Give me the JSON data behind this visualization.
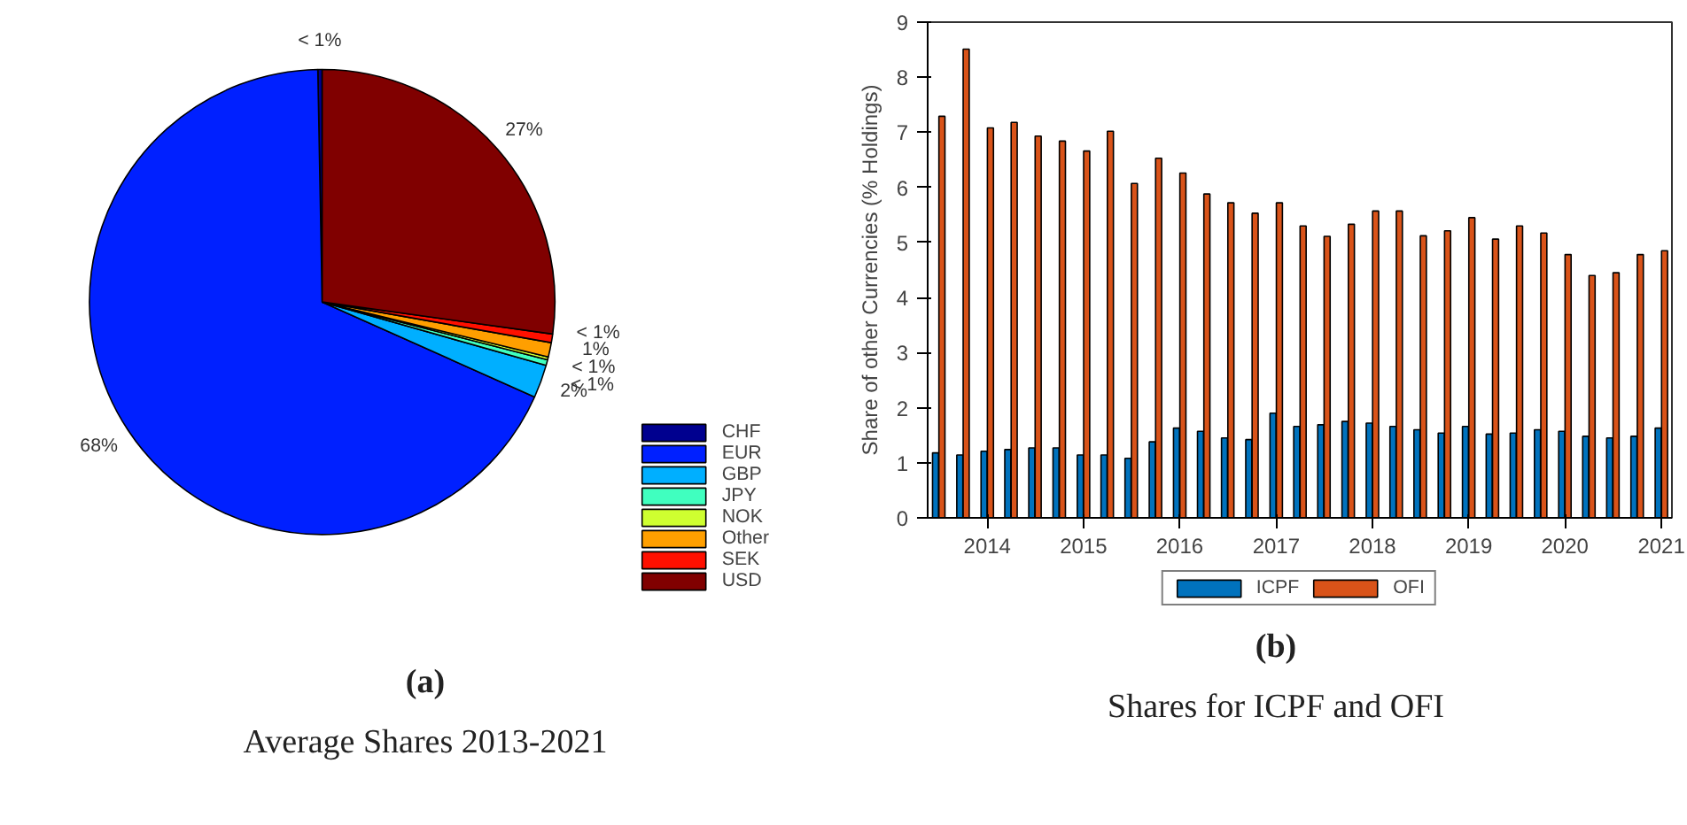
{
  "chart_data": [
    {
      "type": "pie",
      "title": "(a)",
      "subtitle": "Average Shares 2013-2021",
      "legend": "bottom right",
      "categories": [
        "CHF",
        "EUR",
        "GBP",
        "JPY",
        "NOK",
        "Other",
        "SEK",
        "USD"
      ],
      "values": [
        0.3,
        68.0,
        2.3,
        0.4,
        0.2,
        1.0,
        0.6,
        27.2
      ],
      "value_labels": [
        "< 1%",
        "68%",
        "2%",
        "< 1%",
        "< 1%",
        "1%",
        "< 1%",
        "27%"
      ],
      "colors": [
        "#00008f",
        "#0020ff",
        "#00afff",
        "#40ffbf",
        "#cfff30",
        "#ff9f00",
        "#ff1000",
        "#800000"
      ]
    },
    {
      "type": "bar",
      "title": "(b)",
      "subtitle": "Shares for ICPF and OFI",
      "ylabel": "Share of other Currencies (% Holdings)",
      "legend": "bottom",
      "x": [
        "2013-07",
        "2013-10",
        "2014-01",
        "2014-04",
        "2014-07",
        "2014-10",
        "2015-01",
        "2015-04",
        "2015-07",
        "2015-10",
        "2016-01",
        "2016-04",
        "2016-07",
        "2016-10",
        "2017-01",
        "2017-04",
        "2017-07",
        "2017-10",
        "2018-01",
        "2018-04",
        "2018-07",
        "2018-10",
        "2019-01",
        "2019-04",
        "2019-07",
        "2019-10",
        "2020-01",
        "2020-04",
        "2020-07",
        "2020-10",
        "2021-01"
      ],
      "xlim": [
        "2013-05-20",
        "2021-02-10"
      ],
      "xticks": [
        "2014",
        "2015",
        "2016",
        "2017",
        "2018",
        "2019",
        "2020",
        "2021"
      ],
      "ylim": [
        0,
        9
      ],
      "yticks": [
        0,
        1,
        2,
        3,
        4,
        5,
        6,
        7,
        8,
        9
      ],
      "series": [
        {
          "name": "ICPF",
          "color": "#0072bd",
          "values": [
            1.18,
            1.14,
            1.21,
            1.24,
            1.27,
            1.27,
            1.14,
            1.14,
            1.08,
            1.38,
            1.63,
            1.57,
            1.45,
            1.42,
            1.9,
            1.66,
            1.69,
            1.75,
            1.72,
            1.66,
            1.6,
            1.54,
            1.66,
            1.52,
            1.54,
            1.6,
            1.57,
            1.48,
            1.45,
            1.48,
            1.63
          ]
        },
        {
          "name": "OFI",
          "color": "#d95319",
          "values": [
            7.29,
            8.51,
            7.08,
            7.18,
            6.93,
            6.84,
            6.66,
            7.02,
            6.07,
            6.53,
            6.26,
            5.88,
            5.72,
            5.53,
            5.72,
            5.3,
            5.11,
            5.33,
            5.57,
            5.57,
            5.12,
            5.21,
            5.45,
            5.06,
            5.3,
            5.17,
            4.78,
            4.4,
            4.45,
            4.78,
            4.85
          ]
        }
      ]
    }
  ]
}
